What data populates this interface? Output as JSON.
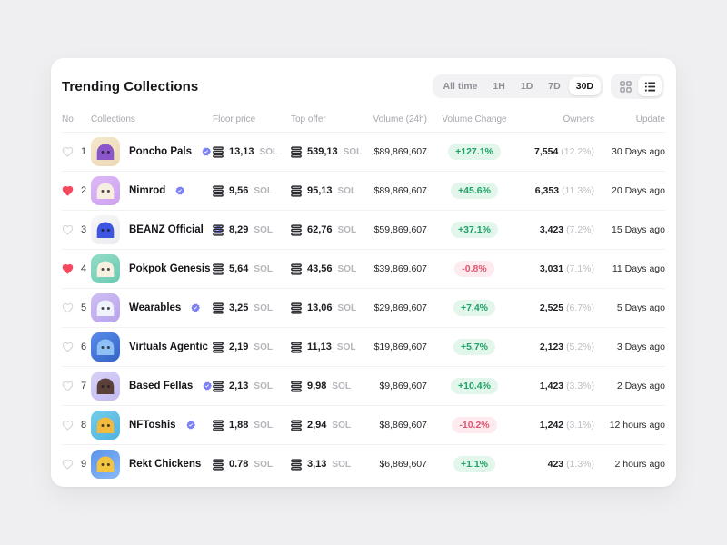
{
  "header": {
    "title": "Trending Collections",
    "filters": [
      "All time",
      "1H",
      "1D",
      "7D",
      "30D"
    ],
    "active_filter": "30D",
    "view_options": [
      "grid",
      "list"
    ],
    "active_view": "list"
  },
  "table": {
    "columns": [
      {
        "label": "No",
        "align": "left"
      },
      {
        "label": "Collections",
        "align": "left"
      },
      {
        "label": "Floor price",
        "align": "left"
      },
      {
        "label": "Top offer",
        "align": "left"
      },
      {
        "label": "Volume (24h)",
        "align": "right"
      },
      {
        "label": "Volume Change",
        "align": "center"
      },
      {
        "label": "Owners",
        "align": "right"
      },
      {
        "label": "Update",
        "align": "right"
      }
    ],
    "rows": [
      {
        "no": "1",
        "favorited": false,
        "name": "Poncho Pals",
        "verified": true,
        "floor": "13,13",
        "floor_unit": "SOL",
        "offer": "539,13",
        "offer_unit": "SOL",
        "volume": "$89,869,607",
        "change": "+127.1%",
        "owners": "7,554",
        "owners_pct": "(12.2%)",
        "update": "30 Days ago",
        "avatar": {
          "bg1": "#f5e8cd",
          "bg2": "#ecd8b4",
          "fg": "#8a56c9"
        }
      },
      {
        "no": "2",
        "favorited": true,
        "name": "Nimrod",
        "verified": true,
        "floor": "9,56",
        "floor_unit": "SOL",
        "offer": "95,13",
        "offer_unit": "SOL",
        "volume": "$89,869,607",
        "change": "+45.6%",
        "owners": "6,353",
        "owners_pct": "(11.3%)",
        "update": "20 Days ago",
        "avatar": {
          "bg1": "#ddb9f7",
          "bg2": "#cda1f0",
          "fg": "#f6eede"
        }
      },
      {
        "no": "3",
        "favorited": false,
        "name": "BEANZ Official",
        "verified": true,
        "floor": "8,29",
        "floor_unit": "SOL",
        "offer": "62,76",
        "offer_unit": "SOL",
        "volume": "$59,869,607",
        "change": "+37.1%",
        "owners": "3,423",
        "owners_pct": "(7.2%)",
        "update": "15 Days ago",
        "avatar": {
          "bg1": "#f7f7f9",
          "bg2": "#ebebef",
          "fg": "#3d55e0"
        }
      },
      {
        "no": "4",
        "favorited": true,
        "name": "Pokpok Genesis",
        "verified": false,
        "floor": "5,64",
        "floor_unit": "SOL",
        "offer": "43,56",
        "offer_unit": "SOL",
        "volume": "$39,869,607",
        "change": "-0.8%",
        "owners": "3,031",
        "owners_pct": "(7.1%)",
        "update": "11 Days ago",
        "avatar": {
          "bg1": "#93dcc8",
          "bg2": "#6ccab1",
          "fg": "#f7f0e1"
        }
      },
      {
        "no": "5",
        "favorited": false,
        "name": "Wearables",
        "verified": true,
        "floor": "3,25",
        "floor_unit": "SOL",
        "offer": "13,06",
        "offer_unit": "SOL",
        "volume": "$29,869,607",
        "change": "+7.4%",
        "owners": "2,525",
        "owners_pct": "(6.7%)",
        "update": "5 Days ago",
        "avatar": {
          "bg1": "#cfbef3",
          "bg2": "#b7a3ec",
          "fg": "#eff4fc"
        }
      },
      {
        "no": "6",
        "favorited": false,
        "name": "Virtuals Agentic",
        "verified": false,
        "floor": "2,19",
        "floor_unit": "SOL",
        "offer": "11,13",
        "offer_unit": "SOL",
        "volume": "$19,869,607",
        "change": "+5.7%",
        "owners": "2,123",
        "owners_pct": "(5.2%)",
        "update": "3 Days ago",
        "avatar": {
          "bg1": "#5a8ceb",
          "bg2": "#3263c6",
          "fg": "#8fc0f5"
        }
      },
      {
        "no": "7",
        "favorited": false,
        "name": "Based Fellas",
        "verified": true,
        "floor": "2,13",
        "floor_unit": "SOL",
        "offer": "9,98",
        "offer_unit": "SOL",
        "volume": "$9,869,607",
        "change": "+10.4%",
        "owners": "1,423",
        "owners_pct": "(3.3%)",
        "update": "2 Days ago",
        "avatar": {
          "bg1": "#d8d2f6",
          "bg2": "#c3baf0",
          "fg": "#5a4038"
        }
      },
      {
        "no": "8",
        "favorited": false,
        "name": "NFToshis",
        "verified": true,
        "floor": "1,88",
        "floor_unit": "SOL",
        "offer": "2,94",
        "offer_unit": "SOL",
        "volume": "$8,869,607",
        "change": "-10.2%",
        "owners": "1,242",
        "owners_pct": "(3.1%)",
        "update": "12 hours ago",
        "avatar": {
          "bg1": "#74cdeb",
          "bg2": "#4fb3e0",
          "fg": "#f1ba3c"
        }
      },
      {
        "no": "9",
        "favorited": false,
        "name": "Rekt Chickens",
        "verified": false,
        "floor": "0.78",
        "floor_unit": "SOL",
        "offer": "3,13",
        "offer_unit": "SOL",
        "volume": "$6,869,607",
        "change": "+1.1%",
        "owners": "423",
        "owners_pct": "(1.3%)",
        "update": "2 hours ago",
        "avatar": {
          "bg1": "#5a93ec",
          "bg2": "#8ab9f6",
          "fg": "#f3c43e"
        }
      }
    ]
  },
  "colors": {
    "page-bg": "#efeef0",
    "card-bg": "#ffffff",
    "title": "#17171b",
    "muted": "#a6a6ad",
    "unit": "#b5b5bc",
    "divider": "#f2f2f5",
    "control-bg": "#f2f1f4",
    "heart": "#f6485f",
    "badge": "#7b80f5",
    "up-text": "#1ea265",
    "up-bg": "#e3f6ec",
    "down-text": "#e25672",
    "down-bg": "#fdebef"
  }
}
